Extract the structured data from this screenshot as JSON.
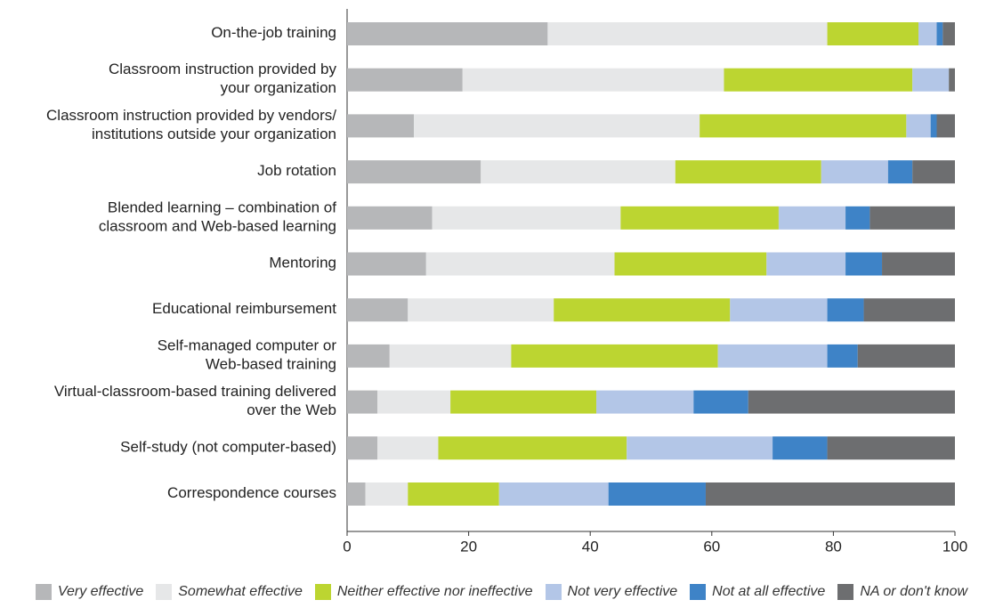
{
  "chart_data": {
    "type": "stacked-bar-horizontal",
    "categories": [
      "On-the-job training",
      "Classroom instruction provided by\nyour organization",
      "Classroom instruction provided by vendors/\ninstitutions outside your organization",
      "Job rotation",
      "Blended learning – combination of\nclassroom and Web-based learning",
      "Mentoring",
      "Educational reimbursement",
      "Self-managed computer or\nWeb-based training",
      "Virtual-classroom-based training delivered\nover the Web",
      "Self-study (not computer-based)",
      "Correspondence courses"
    ],
    "series": [
      {
        "name": "Very effective",
        "color": "#b6b7b9",
        "values": [
          33,
          19,
          11,
          22,
          14,
          13,
          10,
          7,
          5,
          5,
          3
        ]
      },
      {
        "name": "Somewhat effective",
        "color": "#e6e7e8",
        "values": [
          46,
          43,
          47,
          32,
          31,
          31,
          24,
          20,
          12,
          10,
          7
        ]
      },
      {
        "name": "Neither effective nor ineffective",
        "color": "#bcd531",
        "values": [
          15,
          31,
          34,
          24,
          26,
          25,
          29,
          34,
          24,
          31,
          15
        ]
      },
      {
        "name": "Not very effective",
        "color": "#b3c6e7",
        "values": [
          3,
          6,
          4,
          11,
          11,
          13,
          16,
          18,
          16,
          24,
          18
        ]
      },
      {
        "name": "Not at all effective",
        "color": "#3e83c7",
        "values": [
          1,
          0,
          1,
          4,
          4,
          6,
          6,
          5,
          9,
          9,
          16
        ]
      },
      {
        "name": "NA or don't know",
        "color": "#6d6e70",
        "values": [
          2,
          1,
          3,
          7,
          14,
          12,
          15,
          16,
          34,
          21,
          41
        ]
      }
    ],
    "xlim": [
      0,
      100
    ],
    "xticks": [
      0,
      20,
      40,
      60,
      80,
      100
    ],
    "grid": false,
    "legend": "bottom"
  }
}
